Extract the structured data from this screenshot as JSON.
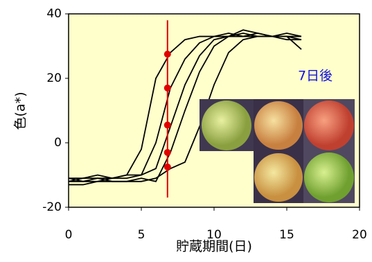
{
  "chart_data": {
    "type": "line",
    "x": [
      0,
      1,
      2,
      3,
      4,
      5,
      6,
      7,
      8,
      9,
      10,
      11,
      12,
      13,
      14,
      15,
      16
    ],
    "series": [
      {
        "color": "#000000",
        "values": [
          -11,
          -12,
          -11,
          -11,
          -10,
          -2,
          20,
          28,
          32,
          33,
          33,
          33,
          34,
          33,
          33,
          32,
          32
        ]
      },
      {
        "color": "#000000",
        "values": [
          -12,
          -12,
          -12,
          -11,
          -11,
          -10,
          0,
          17,
          26,
          31,
          33,
          34,
          33,
          34,
          33,
          33,
          32
        ]
      },
      {
        "color": "#000000",
        "values": [
          -11,
          -11,
          -10,
          -11,
          -10,
          -10,
          -8,
          5,
          18,
          27,
          32,
          33,
          33,
          33,
          33,
          33,
          33
        ]
      },
      {
        "color": "#000000",
        "values": [
          -12,
          -11,
          -11,
          -12,
          -12,
          -11,
          -12,
          -3,
          10,
          22,
          30,
          33,
          35,
          34,
          33,
          34,
          33
        ]
      },
      {
        "color": "#000000",
        "values": [
          -13,
          -13,
          -12,
          -12,
          -12,
          -12,
          -11,
          -8,
          -6,
          5,
          18,
          28,
          32,
          33,
          33,
          33,
          29
        ]
      }
    ],
    "marker_line": {
      "x": 6.8,
      "ylim": [
        -17,
        38
      ],
      "color": "#e00000",
      "values": [
        27.5,
        17,
        5.5,
        -3,
        -7.5
      ]
    },
    "annotation": "7日後",
    "xlabel": "貯蔵期間(日)",
    "ylabel": "色(a*)",
    "xlim": [
      0,
      20
    ],
    "xticks": [
      0,
      5,
      10,
      15,
      20
    ],
    "ylim": [
      -20,
      40
    ],
    "yticks": [
      -20,
      0,
      20,
      40
    ],
    "background": "#ffffcc"
  }
}
